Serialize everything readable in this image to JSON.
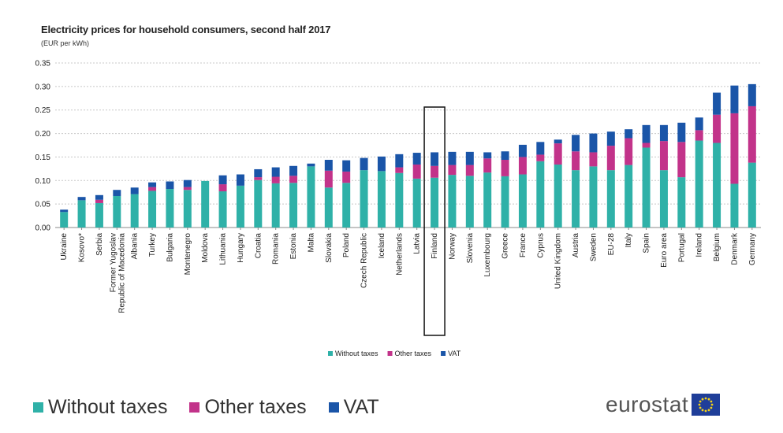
{
  "colors": {
    "without_taxes": "#2fb1a8",
    "other_taxes": "#c2338a",
    "vat": "#1a55a8",
    "grid": "#c8c8c8",
    "logo_flag": "#1f3e99",
    "logo_stars": "#f5d317"
  },
  "big_legend": {
    "without_taxes": "Without taxes",
    "other_taxes": "Other taxes",
    "vat": "VAT"
  },
  "logo": {
    "text": "eurostat",
    "icon": "eu-flag-icon"
  },
  "chart_data": {
    "type": "bar",
    "stacked": true,
    "title": "Electricity prices for household consumers, second half 2017",
    "subtitle": "(EUR per kWh)",
    "ylim": [
      0,
      0.35
    ],
    "yticks": [
      "0.00",
      "0.05",
      "0.10",
      "0.15",
      "0.20",
      "0.25",
      "0.30",
      "0.35"
    ],
    "grid": true,
    "legend_position": "bottom-center",
    "highlighted_category": "Finland",
    "categories": [
      "Ukraine",
      "Kosovo*",
      "Serbia",
      "Former Yugoslav Republic of Macedonia",
      "Albania",
      "Turkey",
      "Bulgaria",
      "Montenegro",
      "Moldova",
      "Lithuania",
      "Hungary",
      "Croatia",
      "Romania",
      "Estonia",
      "Malta",
      "Slovakia",
      "Poland",
      "Czech Republic",
      "Iceland",
      "Netherlands",
      "Latvia",
      "Finland",
      "Norway",
      "Slovenia",
      "Luxembourg",
      "Greece",
      "France",
      "Cyprus",
      "United Kingdom",
      "Austria",
      "Sweden",
      "EU-28",
      "Italy",
      "Spain",
      "Euro area",
      "Portugal",
      "Ireland",
      "Belgium",
      "Denmark",
      "Germany"
    ],
    "tick_labels": [
      [
        "Ukraine"
      ],
      [
        "Kosovo*"
      ],
      [
        "Serbia"
      ],
      [
        "Former Yugoslav",
        "Republic of Macedonia"
      ],
      [
        "Albania"
      ],
      [
        "Turkey"
      ],
      [
        "Bulgaria"
      ],
      [
        "Montenegro"
      ],
      [
        "Moldova"
      ],
      [
        "Lithuania"
      ],
      [
        "Hungary"
      ],
      [
        "Croatia"
      ],
      [
        "Romania"
      ],
      [
        "Estonia"
      ],
      [
        "Malta"
      ],
      [
        "Slovakia"
      ],
      [
        "Poland"
      ],
      [
        "Czech Republic"
      ],
      [
        "Iceland"
      ],
      [
        "Netherlands"
      ],
      [
        "Latvia"
      ],
      [
        "Finland"
      ],
      [
        "Norway"
      ],
      [
        "Slovenia"
      ],
      [
        "Luxembourg"
      ],
      [
        "Greece"
      ],
      [
        "France"
      ],
      [
        "Cyprus"
      ],
      [
        "United Kingdom"
      ],
      [
        "Austria"
      ],
      [
        "Sweden"
      ],
      [
        "EU-28"
      ],
      [
        "Italy"
      ],
      [
        "Spain"
      ],
      [
        "Euro area"
      ],
      [
        "Portugal"
      ],
      [
        "Ireland"
      ],
      [
        "Belgium"
      ],
      [
        "Denmark"
      ],
      [
        "Germany"
      ]
    ],
    "series": [
      {
        "name": "Without taxes",
        "values": [
          0.033,
          0.058,
          0.052,
          0.067,
          0.071,
          0.078,
          0.082,
          0.08,
          0.099,
          0.077,
          0.089,
          0.101,
          0.094,
          0.095,
          0.13,
          0.085,
          0.095,
          0.122,
          0.12,
          0.116,
          0.104,
          0.106,
          0.112,
          0.11,
          0.117,
          0.109,
          0.113,
          0.141,
          0.134,
          0.122,
          0.13,
          0.122,
          0.133,
          0.17,
          0.122,
          0.107,
          0.185,
          0.18,
          0.093,
          0.138
        ]
      },
      {
        "name": "Other taxes",
        "values": [
          0.0,
          0.0,
          0.007,
          0.0,
          0.0,
          0.008,
          0.0,
          0.006,
          0.0,
          0.015,
          0.0,
          0.006,
          0.014,
          0.015,
          0.0,
          0.036,
          0.024,
          0.0,
          0.0,
          0.012,
          0.03,
          0.025,
          0.021,
          0.023,
          0.03,
          0.035,
          0.037,
          0.014,
          0.045,
          0.04,
          0.03,
          0.052,
          0.057,
          0.01,
          0.062,
          0.075,
          0.022,
          0.06,
          0.15,
          0.12
        ]
      },
      {
        "name": "VAT",
        "values": [
          0.005,
          0.007,
          0.01,
          0.013,
          0.014,
          0.01,
          0.016,
          0.015,
          0.0,
          0.019,
          0.024,
          0.017,
          0.02,
          0.021,
          0.006,
          0.023,
          0.024,
          0.026,
          0.031,
          0.028,
          0.025,
          0.029,
          0.028,
          0.028,
          0.013,
          0.018,
          0.026,
          0.027,
          0.008,
          0.035,
          0.04,
          0.03,
          0.019,
          0.038,
          0.034,
          0.041,
          0.027,
          0.047,
          0.059,
          0.047
        ]
      }
    ]
  }
}
